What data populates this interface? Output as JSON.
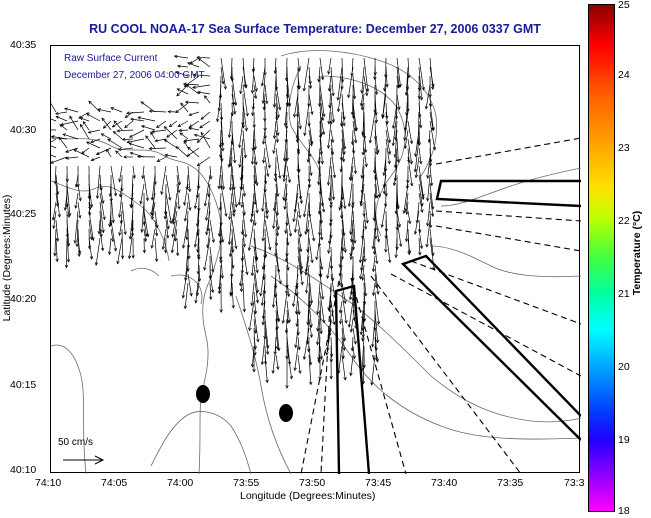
{
  "title": "RU COOL  NOAA-17  Sea Surface Temperature:  December 27, 2006 0337 GMT",
  "legend": {
    "line1": "Raw Surface Current",
    "line2": "December 27, 2006 04:00 GMT"
  },
  "scale_label": "50 cm/s",
  "axes": {
    "xlabel": "Longitude (Degrees:Minutes)",
    "ylabel": "Latitude (Degrees:Minutes)",
    "xticks": [
      "74:10",
      "74:05",
      "74:00",
      "73:55",
      "73:50",
      "73:45",
      "73:40",
      "73:35",
      "73:3"
    ],
    "yticks": [
      "40:35",
      "40:30",
      "40:25",
      "40:20",
      "40:15",
      "40:10"
    ]
  },
  "colorbar": {
    "title": "Temperature (°C)",
    "ticks": [
      "25",
      "24",
      "23",
      "22",
      "21",
      "20",
      "19",
      "18"
    ],
    "colors": {
      "hot": "#8b0000",
      "cold": "#ff00ff"
    }
  },
  "colors": {
    "title": "#1a1a9c",
    "legend": "#1a1a9c"
  }
}
